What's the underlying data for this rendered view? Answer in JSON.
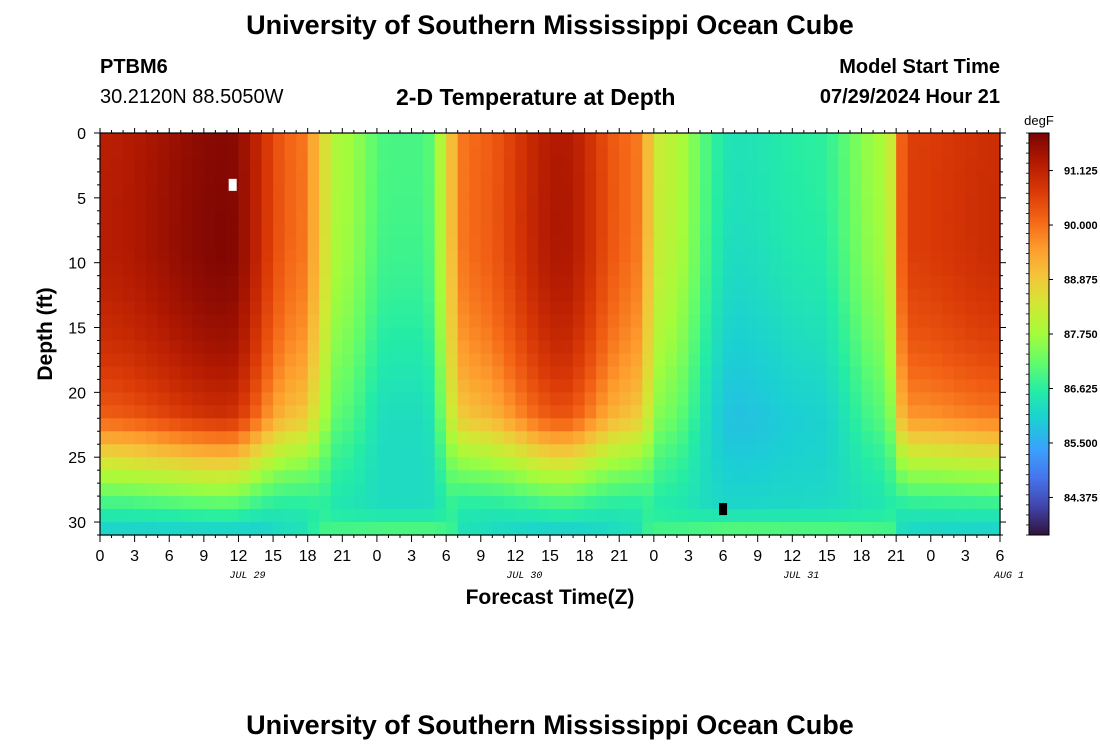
{
  "header": {
    "title": "University of Southern Mississippi Ocean Cube",
    "station_id": "PTBM6",
    "coordinates": "30.2120N  88.5050W",
    "subtitle": "2-D Temperature at Depth",
    "model_start_label": "Model Start Time",
    "model_start_value": "07/29/2024 Hour 21"
  },
  "footer": {
    "title": "University of Southern Mississippi Ocean Cube"
  },
  "chart_data": {
    "type": "heatmap",
    "title": "2-D Temperature at Depth",
    "xlabel": "Forecast Time(Z)",
    "ylabel": "Depth (ft)",
    "x_range_hours": [
      0,
      78
    ],
    "x_tick_labels": [
      "0",
      "3",
      "6",
      "9",
      "12",
      "15",
      "18",
      "21",
      "0",
      "3",
      "6",
      "9",
      "12",
      "15",
      "18",
      "21",
      "0",
      "3",
      "6",
      "9",
      "12",
      "15",
      "18",
      "21",
      "0",
      "3",
      "6"
    ],
    "date_labels": [
      {
        "label": "JUL 29",
        "hour": 12
      },
      {
        "label": "JUL 30",
        "hour": 36
      },
      {
        "label": "JUL 31",
        "hour": 60
      },
      {
        "label": "AUG 1",
        "hour": 78
      }
    ],
    "y_range": [
      0,
      31
    ],
    "y_ticks": [
      0,
      5,
      10,
      15,
      20,
      25,
      30
    ],
    "y_reversed": true,
    "colorbar": {
      "unit": "degF",
      "ticks": [
        "84.375",
        "85.500",
        "86.625",
        "87.750",
        "88.875",
        "90.000",
        "91.125"
      ],
      "range": [
        83.6,
        91.9
      ],
      "colors": [
        "#30123b",
        "#4145ab",
        "#4675ed",
        "#39a2fc",
        "#1bcfd4",
        "#24eca6",
        "#61fc6c",
        "#a4fc3b",
        "#d1e834",
        "#f3c63a",
        "#fe9b2d",
        "#f36315",
        "#d93806",
        "#b11901",
        "#7a0403"
      ]
    },
    "markers": [
      {
        "name": "max",
        "hour": 11.5,
        "depth": 4,
        "color": "#ffffff"
      },
      {
        "name": "min",
        "hour": 54,
        "depth": 29,
        "color": "#000000"
      }
    ],
    "regime": [
      {
        "hour": 0,
        "value": 0.9
      },
      {
        "hour": 11,
        "value": 1.0
      },
      {
        "hour": 17,
        "value": 0.7
      },
      {
        "hour": 21,
        "value": 0.3
      },
      {
        "hour": 25,
        "value": 0.15
      },
      {
        "hour": 28,
        "value": 0.15
      },
      {
        "hour": 32,
        "value": 0.7
      },
      {
        "hour": 40,
        "value": 0.92
      },
      {
        "hour": 46,
        "value": 0.7
      },
      {
        "hour": 49,
        "value": 0.35
      },
      {
        "hour": 55,
        "value": 0.05
      },
      {
        "hour": 62,
        "value": 0.1
      },
      {
        "hour": 68,
        "value": 0.3
      },
      {
        "hour": 70,
        "value": 0.8
      },
      {
        "hour": 78,
        "value": 0.85
      }
    ]
  }
}
